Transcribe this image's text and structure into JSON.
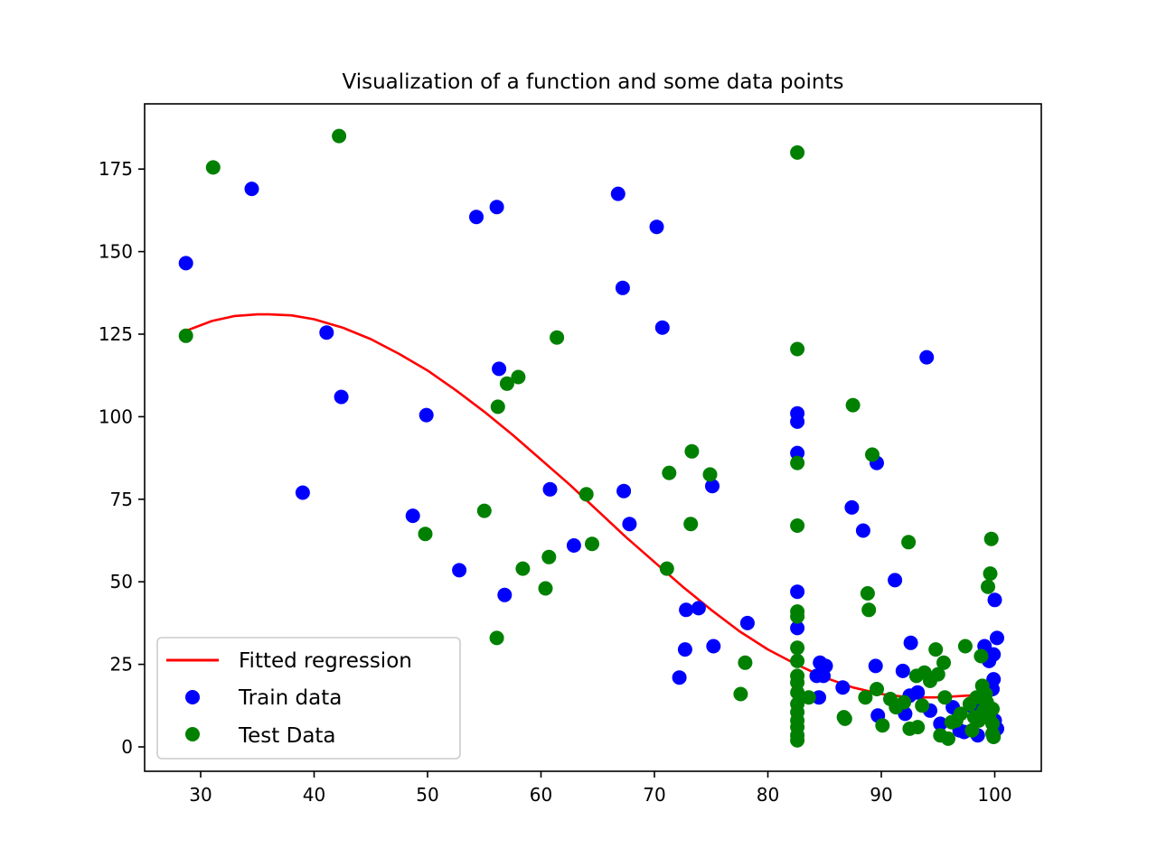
{
  "chart_data": {
    "type": "scatter",
    "title": "Visualization of a function and some data points",
    "xlabel": "",
    "ylabel": "",
    "xlim": [
      25,
      104
    ],
    "ylim": [
      -7,
      195
    ],
    "xticks": [
      30,
      40,
      50,
      60,
      70,
      80,
      90,
      100
    ],
    "yticks": [
      0,
      25,
      50,
      75,
      100,
      125,
      150,
      175
    ],
    "grid": false,
    "legend_position": "lower-left",
    "colors": {
      "fit": "#ff0000",
      "train": "#0000ff",
      "test": "#008000"
    },
    "fit": {
      "name": "Fitted regression",
      "x": [
        28.7,
        31,
        33,
        35,
        36,
        38,
        40,
        42.5,
        45,
        47.5,
        50,
        52.5,
        55,
        57.5,
        60,
        62.5,
        65,
        67.5,
        70,
        72.5,
        75,
        77.5,
        80,
        82.5,
        85,
        87.5,
        90,
        92.5,
        95,
        97.5,
        100
      ],
      "y": [
        126,
        129,
        130.5,
        131,
        131,
        130.7,
        129.5,
        127,
        123.5,
        119,
        114,
        108,
        101.5,
        94.5,
        87,
        79.5,
        71.5,
        63.5,
        56,
        48.5,
        41.5,
        35,
        29.5,
        25,
        21,
        18,
        16,
        15,
        15,
        15.5,
        16
      ]
    },
    "series": [
      {
        "name": "Train data",
        "points": [
          [
            28.7,
            146.5
          ],
          [
            34.5,
            169
          ],
          [
            39,
            77
          ],
          [
            41.1,
            125.5
          ],
          [
            42.4,
            106
          ],
          [
            48.7,
            70
          ],
          [
            49.9,
            100.5
          ],
          [
            52.8,
            53.5
          ],
          [
            54.3,
            160.5
          ],
          [
            56.1,
            163.5
          ],
          [
            56.3,
            114.5
          ],
          [
            56.8,
            46
          ],
          [
            60.8,
            78
          ],
          [
            62.9,
            61
          ],
          [
            66.8,
            167.5
          ],
          [
            67.2,
            139
          ],
          [
            67.3,
            77.5
          ],
          [
            67.8,
            67.5
          ],
          [
            70.2,
            157.5
          ],
          [
            70.7,
            127
          ],
          [
            72.2,
            21
          ],
          [
            72.7,
            29.5
          ],
          [
            72.8,
            41.5
          ],
          [
            73.9,
            42
          ],
          [
            75.1,
            79
          ],
          [
            75.2,
            30.5
          ],
          [
            78.2,
            37.5
          ],
          [
            82.6,
            101
          ],
          [
            82.6,
            98.5
          ],
          [
            82.6,
            89
          ],
          [
            82.6,
            47
          ],
          [
            82.6,
            36
          ],
          [
            84.3,
            21.5
          ],
          [
            84.5,
            15
          ],
          [
            84.6,
            25.5
          ],
          [
            84.9,
            21.5
          ],
          [
            85.1,
            24.5
          ],
          [
            86.6,
            18
          ],
          [
            87.4,
            72.5
          ],
          [
            88.4,
            65.5
          ],
          [
            89.5,
            24.5
          ],
          [
            89.6,
            86
          ],
          [
            89.7,
            9.5
          ],
          [
            91.2,
            50.5
          ],
          [
            91.9,
            23
          ],
          [
            92.1,
            10
          ],
          [
            92.5,
            15.5
          ],
          [
            92.6,
            31.5
          ],
          [
            93.2,
            16.5
          ],
          [
            94,
            118
          ],
          [
            94.3,
            11
          ],
          [
            95.2,
            7
          ],
          [
            96.3,
            12
          ],
          [
            96.9,
            5
          ],
          [
            97.3,
            4.5
          ],
          [
            98.1,
            12
          ],
          [
            98.5,
            3.5
          ],
          [
            99.1,
            30.5
          ],
          [
            99.5,
            26
          ],
          [
            99.8,
            17.5
          ],
          [
            99.9,
            20.5
          ],
          [
            99.9,
            28
          ],
          [
            100,
            44.5
          ],
          [
            100.2,
            33
          ],
          [
            100.2,
            5.5
          ],
          [
            100,
            8
          ]
        ]
      },
      {
        "name": "Test Data",
        "points": [
          [
            28.7,
            124.5
          ],
          [
            31.1,
            175.5
          ],
          [
            42.2,
            185
          ],
          [
            49.8,
            64.5
          ],
          [
            55,
            71.5
          ],
          [
            56.1,
            33
          ],
          [
            56.2,
            103
          ],
          [
            57,
            110
          ],
          [
            58,
            112
          ],
          [
            58.4,
            54
          ],
          [
            60.4,
            48
          ],
          [
            60.7,
            57.5
          ],
          [
            61.4,
            124
          ],
          [
            64,
            76.5
          ],
          [
            64.5,
            61.5
          ],
          [
            71.1,
            54
          ],
          [
            71.3,
            83
          ],
          [
            73.2,
            67.5
          ],
          [
            73.3,
            89.5
          ],
          [
            74.9,
            82.5
          ],
          [
            77.6,
            16
          ],
          [
            78,
            25.5
          ],
          [
            82.6,
            180
          ],
          [
            82.6,
            120.5
          ],
          [
            82.6,
            86
          ],
          [
            82.6,
            67
          ],
          [
            82.6,
            41
          ],
          [
            82.6,
            39.5
          ],
          [
            82.6,
            30
          ],
          [
            82.6,
            26
          ],
          [
            82.6,
            21.5
          ],
          [
            82.6,
            19.5
          ],
          [
            82.6,
            16.5
          ],
          [
            82.6,
            13
          ],
          [
            82.6,
            10.5
          ],
          [
            82.6,
            8
          ],
          [
            82.6,
            6
          ],
          [
            82.6,
            3.5
          ],
          [
            82.6,
            2
          ],
          [
            83.6,
            15
          ],
          [
            86.7,
            9
          ],
          [
            86.8,
            8.5
          ],
          [
            87.5,
            103.5
          ],
          [
            88.6,
            15
          ],
          [
            88.8,
            46.5
          ],
          [
            88.9,
            41.5
          ],
          [
            89.2,
            88.5
          ],
          [
            89.6,
            17.5
          ],
          [
            90.1,
            6.5
          ],
          [
            90.8,
            14.5
          ],
          [
            91.3,
            12
          ],
          [
            92,
            13.5
          ],
          [
            92.4,
            62
          ],
          [
            92.5,
            5.5
          ],
          [
            93.2,
            6
          ],
          [
            93.1,
            21.5
          ],
          [
            93.6,
            12.5
          ],
          [
            93.8,
            22.5
          ],
          [
            94.3,
            20
          ],
          [
            94.8,
            29.5
          ],
          [
            95,
            22
          ],
          [
            95.2,
            3.5
          ],
          [
            95.5,
            25.5
          ],
          [
            95.6,
            15
          ],
          [
            95.9,
            2.5
          ],
          [
            96.2,
            7.5
          ],
          [
            96.6,
            8
          ],
          [
            97,
            10
          ],
          [
            97.4,
            30.5
          ],
          [
            97.8,
            13
          ],
          [
            98,
            5
          ],
          [
            98.2,
            9
          ],
          [
            98.4,
            15
          ],
          [
            98.6,
            8
          ],
          [
            98.8,
            27.5
          ],
          [
            98.9,
            18.5
          ],
          [
            99,
            11
          ],
          [
            99.2,
            16
          ],
          [
            99.3,
            13.5
          ],
          [
            99.4,
            48.5
          ],
          [
            99.6,
            52.5
          ],
          [
            99.7,
            63
          ],
          [
            99.5,
            9.5
          ],
          [
            99.8,
            7
          ],
          [
            99.8,
            4
          ],
          [
            99.8,
            11.5
          ],
          [
            99.9,
            3
          ]
        ]
      }
    ]
  }
}
